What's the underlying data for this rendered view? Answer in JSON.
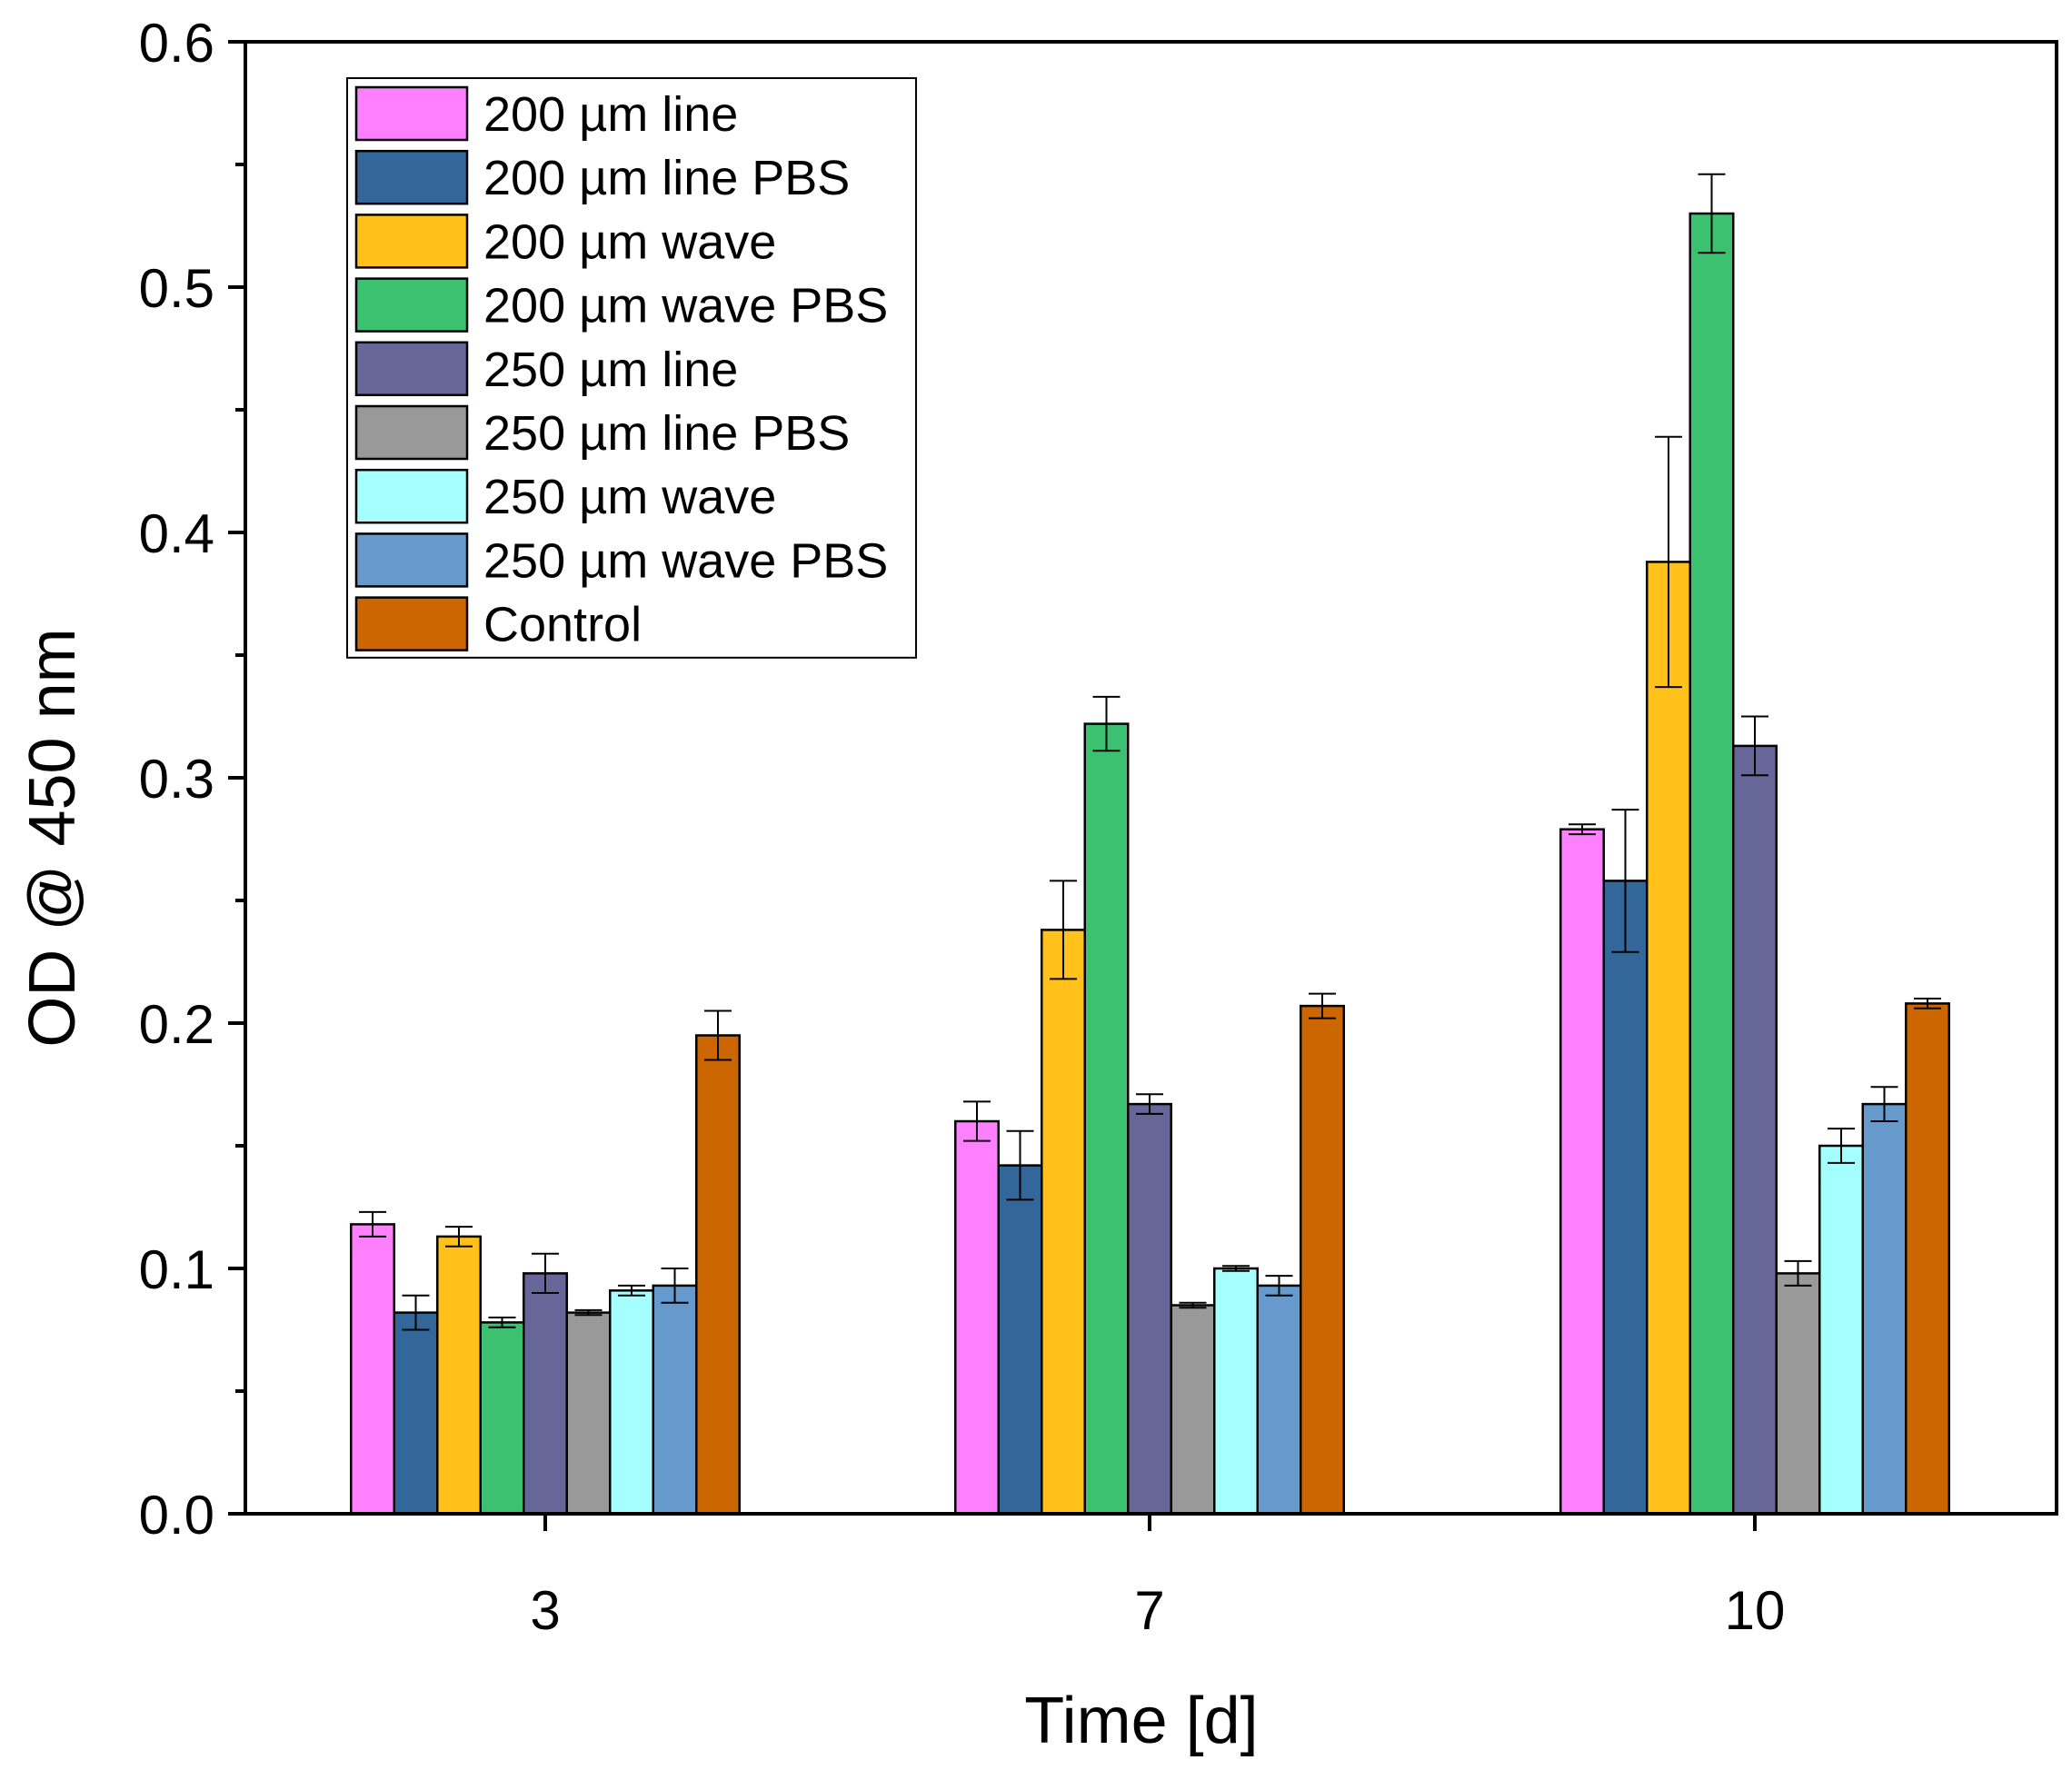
{
  "chart_data": {
    "type": "bar",
    "title": "",
    "xlabel": "Time [d]",
    "ylabel": "OD @ 450 nm",
    "categories": [
      "3",
      "7",
      "10"
    ],
    "ylim": [
      0,
      0.6
    ],
    "yticks": [
      "0.0",
      "0.1",
      "0.2",
      "0.3",
      "0.4",
      "0.5",
      "0.6"
    ],
    "y_minor_ticks": true,
    "grid": false,
    "legend_position": "top-left",
    "error_bars": true,
    "series": [
      {
        "name": "200 µm line",
        "color": "#FF80FF",
        "values": [
          0.118,
          0.16,
          0.279
        ],
        "errors": [
          0.005,
          0.008,
          0.002
        ]
      },
      {
        "name": "200 µm line PBS",
        "color": "#336699",
        "values": [
          0.082,
          0.142,
          0.258
        ],
        "errors": [
          0.007,
          0.014,
          0.029
        ]
      },
      {
        "name": "200 µm wave",
        "color": "#FFC11A",
        "values": [
          0.113,
          0.238,
          0.388
        ],
        "errors": [
          0.004,
          0.02,
          0.051
        ]
      },
      {
        "name": "200 µm wave PBS",
        "color": "#3CC170",
        "values": [
          0.078,
          0.322,
          0.53
        ],
        "errors": [
          0.002,
          0.011,
          0.016
        ]
      },
      {
        "name": "250 µm line",
        "color": "#666699",
        "values": [
          0.098,
          0.167,
          0.313
        ],
        "errors": [
          0.008,
          0.004,
          0.012
        ]
      },
      {
        "name": "250 µm line PBS",
        "color": "#999999",
        "values": [
          0.082,
          0.085,
          0.098
        ],
        "errors": [
          0.001,
          0.001,
          0.005
        ]
      },
      {
        "name": "250 µm wave",
        "color": "#A6FFFF",
        "values": [
          0.091,
          0.1,
          0.15
        ],
        "errors": [
          0.002,
          0.001,
          0.007
        ]
      },
      {
        "name": "250 µm wave PBS",
        "color": "#6699CC",
        "values": [
          0.093,
          0.093,
          0.167
        ],
        "errors": [
          0.007,
          0.004,
          0.007
        ]
      },
      {
        "name": "Control",
        "color": "#CC6600",
        "values": [
          0.195,
          0.207,
          0.208
        ],
        "errors": [
          0.01,
          0.005,
          0.002
        ]
      }
    ]
  }
}
